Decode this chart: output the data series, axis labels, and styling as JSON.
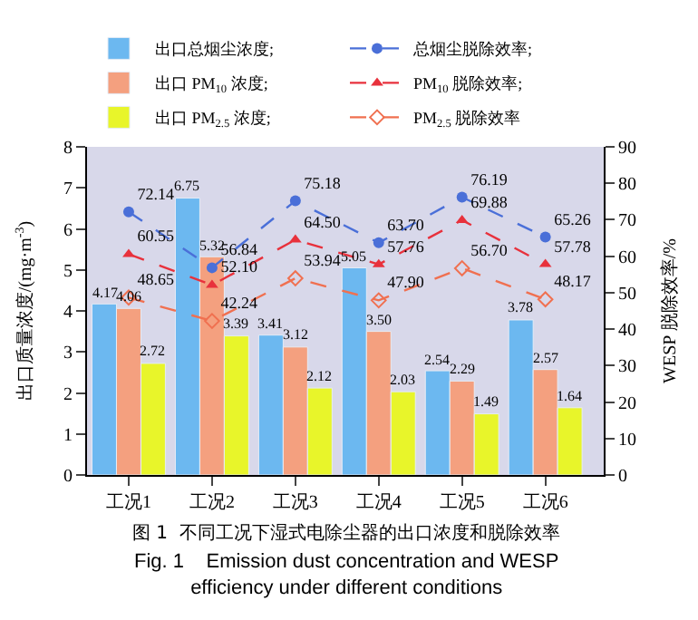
{
  "chart_data": {
    "type": "bar",
    "categories": [
      "工况1",
      "工况2",
      "工况3",
      "工况4",
      "工况5",
      "工况6"
    ],
    "ylabel": "出口质量浓度/(mg·m$^{-3}$)",
    "y2label": "WESP 脱除效率/%",
    "ylim": [
      0,
      8
    ],
    "yticks": [
      0,
      1,
      2,
      3,
      4,
      5,
      6,
      7,
      8
    ],
    "y2lim": [
      0,
      90
    ],
    "y2ticks": [
      0,
      10,
      20,
      30,
      40,
      50,
      60,
      70,
      80,
      90
    ],
    "legend": "top",
    "grid": false,
    "series": [
      {
        "name": "出口总烟尘浓度;",
        "color": "#6cb8f0",
        "values": [
          4.17,
          6.75,
          3.41,
          5.05,
          2.54,
          3.78
        ],
        "value_labels": [
          "4.17",
          "6.75",
          "3.41",
          "5.05",
          "2.54",
          "3.78"
        ]
      },
      {
        "name": "出口 PM$_{10}$ 浓度;",
        "color": "#f4a07f",
        "values": [
          4.06,
          5.32,
          3.12,
          3.5,
          2.29,
          2.57
        ],
        "value_labels": [
          "4.06",
          "5.32",
          "3.12",
          "3.50",
          "2.29",
          "2.57"
        ]
      },
      {
        "name": "出口 PM$_{2.5}$ 浓度;",
        "color": "#e8f52a",
        "values": [
          2.72,
          3.39,
          2.12,
          2.03,
          1.49,
          1.64
        ],
        "value_labels": [
          "2.72",
          "3.39",
          "2.12",
          "2.03",
          "1.49",
          "1.64"
        ]
      },
      {
        "name": "总烟尘脱除效率;",
        "type": "line",
        "axis": "y2",
        "color": "#4a6fd8",
        "marker": "circle",
        "line_style": "dashed",
        "values": [
          72.14,
          56.84,
          75.18,
          63.7,
          76.19,
          65.26
        ],
        "value_labels": [
          "72.14",
          "56.84",
          "75.18",
          "63.70",
          "76.19",
          "65.26"
        ]
      },
      {
        "name": "PM$_{10}$ 脱除效率;",
        "type": "line",
        "axis": "y2",
        "color": "#e8313c",
        "marker": "triangle",
        "line_style": "dashed",
        "values": [
          60.55,
          52.1,
          64.5,
          57.76,
          69.88,
          57.78
        ],
        "value_labels": [
          "60.55",
          "52.10",
          "64.50",
          "57.76",
          "69.88",
          "57.78"
        ]
      },
      {
        "name": "PM$_{2.5}$ 脱除效率",
        "type": "line",
        "axis": "y2",
        "color": "#f07050",
        "marker": "diamond",
        "line_style": "dashed",
        "values": [
          48.65,
          42.24,
          53.94,
          47.9,
          56.7,
          48.17
        ],
        "value_labels": [
          "48.65",
          "42.24",
          "53.94",
          "47.90",
          "56.70",
          "48.17"
        ]
      }
    ],
    "annotations": [
      "图 1  不同工况下湿式电除尘器的出口浓度和脱除效率",
      "Fig. 1    Emission dust concentration and WESP efficiency under different conditions"
    ]
  }
}
